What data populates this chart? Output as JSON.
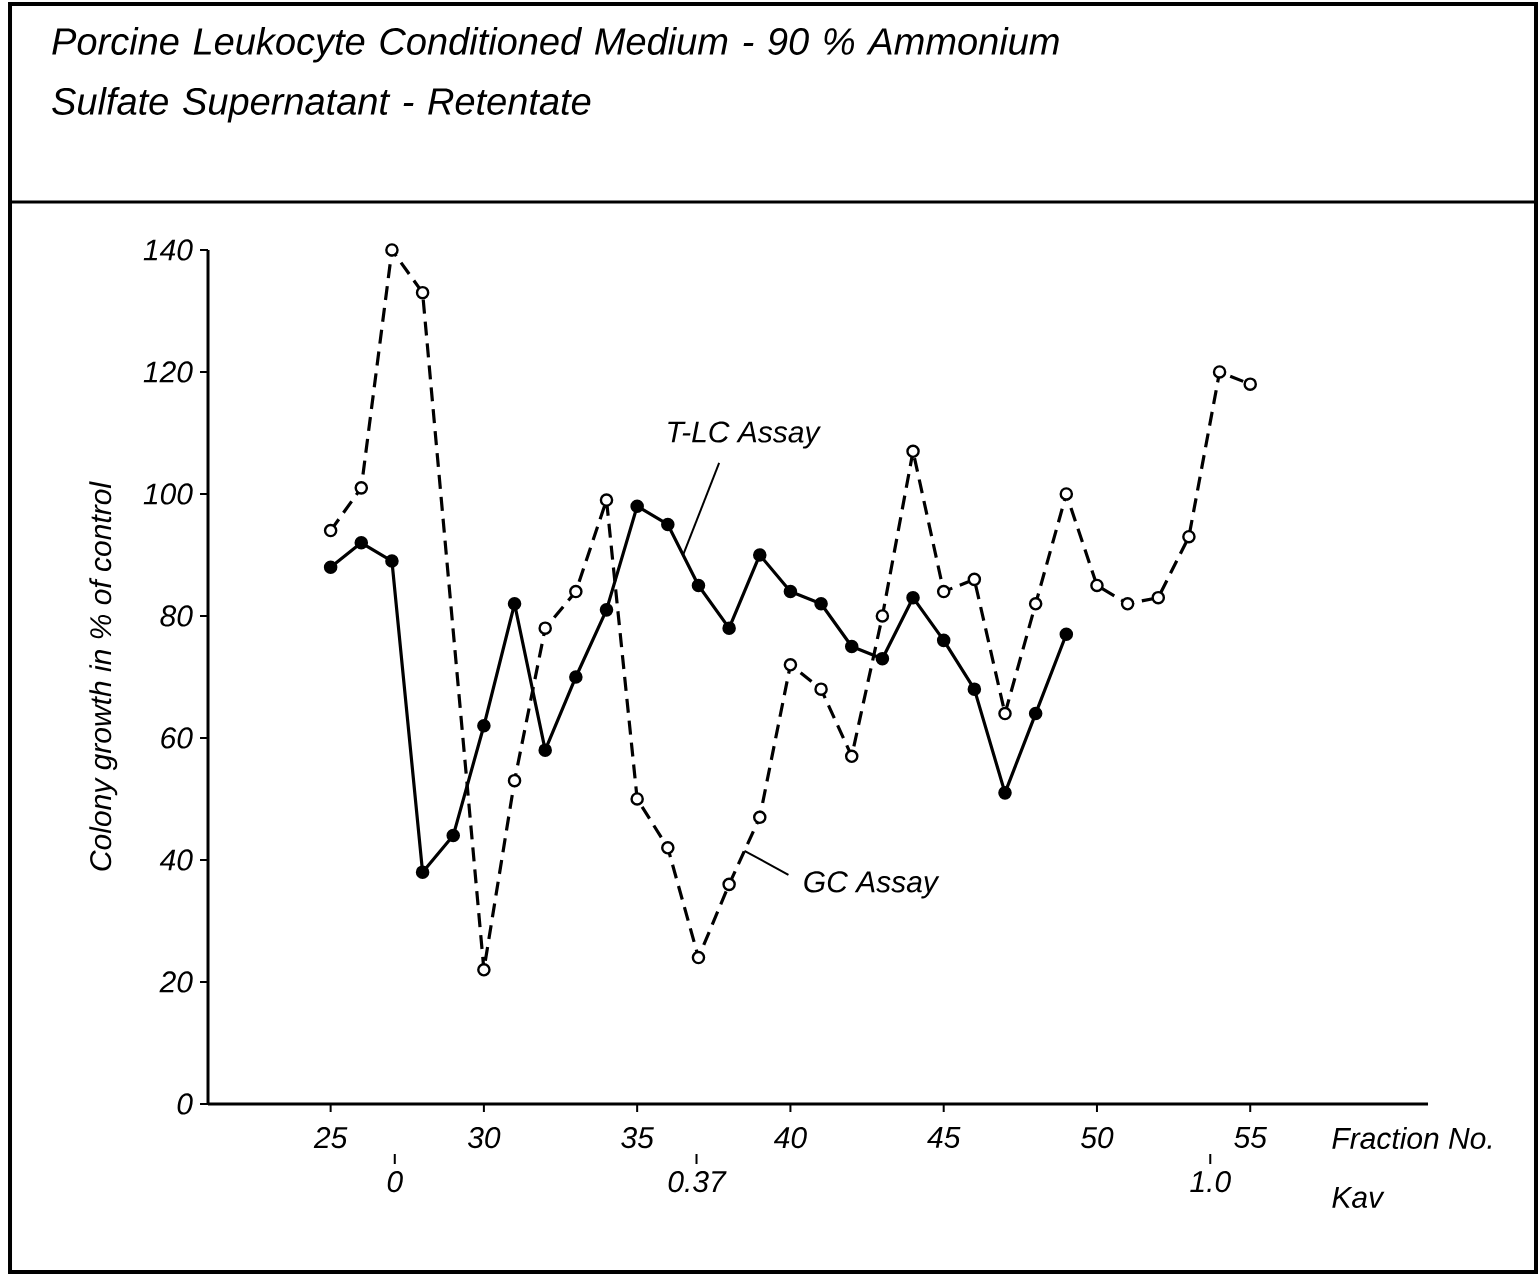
{
  "chart_data": {
    "type": "line",
    "title": "Porcine Leukocyte Conditioned Medium - 90 % Ammonium Sulfate Supernatant - Retentate",
    "xlabel": "Fraction No.",
    "ylabel": "Colony growth in % of control",
    "x2label": "Kav",
    "xlim": [
      21,
      60.8
    ],
    "xticks": [
      25,
      30,
      35,
      40,
      45,
      50,
      55
    ],
    "x2lim": [
      -0.229,
      1.267
    ],
    "x2ticks": [
      0,
      {
        "value": 0.37,
        "label": "0.37"
      },
      {
        "value": 1,
        "label": "1.0"
      }
    ],
    "ylim": [
      0,
      140
    ],
    "yticks": [
      0,
      20,
      40,
      60,
      80,
      100,
      120,
      140
    ],
    "series": [
      {
        "name": "T-LC Assay",
        "color": "#000000",
        "marker": "circle",
        "line_style": "solid",
        "x": [
          25,
          26,
          27,
          28,
          29,
          30,
          31,
          32,
          33,
          34,
          35,
          36,
          37,
          38,
          39,
          40,
          41,
          42,
          43,
          44,
          45,
          46,
          47,
          48,
          49
        ],
        "values": [
          88,
          92,
          89,
          38,
          44,
          62,
          82,
          58,
          70,
          81,
          98,
          95,
          85,
          78,
          90,
          84,
          82,
          75,
          73,
          83,
          76,
          68,
          51,
          64,
          77
        ]
      },
      {
        "name": "GC Assay",
        "color": "#000000",
        "marker": "circle",
        "line_style": "dashed",
        "x": [
          25,
          26,
          27,
          28,
          30,
          31,
          32,
          33,
          34,
          35,
          36,
          37,
          38,
          39,
          40,
          41,
          42,
          43,
          44,
          45,
          46,
          47,
          48,
          49,
          50,
          51,
          52,
          53,
          54,
          55
        ],
        "values": [
          94,
          101,
          140,
          133,
          22,
          53,
          78,
          84,
          99,
          50,
          42,
          24,
          36,
          47,
          72,
          68,
          57,
          80,
          107,
          84,
          86,
          64,
          82,
          100,
          85,
          82,
          83,
          93,
          120,
          118
        ]
      }
    ]
  }
}
